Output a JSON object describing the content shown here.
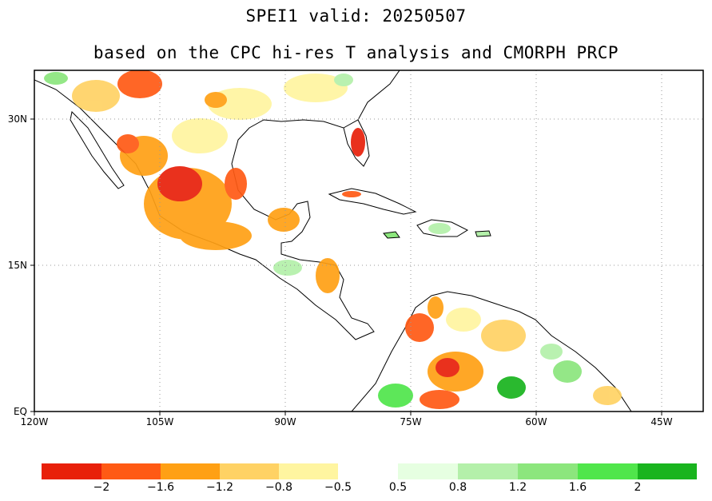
{
  "title": "SPEI1  valid: 20250507",
  "subtitle": "based on the CPC hi-res T analysis and CMORPH PRCP",
  "map": {
    "lon_range": [
      -120,
      -40
    ],
    "lat_range": [
      0,
      35
    ],
    "x_tick_labels": [
      "120W",
      "105W",
      "90W",
      "75W",
      "60W",
      "45W"
    ],
    "x_tick_values": [
      -120,
      -105,
      -90,
      -75,
      -60,
      -45
    ],
    "y_tick_labels": [
      "EQ",
      "15N",
      "30N"
    ],
    "y_tick_values": [
      0,
      15,
      30
    ],
    "grid": "dotted"
  },
  "legend": {
    "dry_colors": [
      "#e8200a",
      "#ff5a14",
      "#ffa014",
      "#ffd264",
      "#fff5a0"
    ],
    "wet_colors": [
      "#e6ffe1",
      "#b4f0aa",
      "#8ce67d",
      "#50e64b",
      "#19b41e"
    ],
    "labels": [
      "−2",
      "−1.6",
      "−1.2",
      "−0.8",
      "−0.5",
      "0.5",
      "0.8",
      "1.2",
      "1.6",
      "2"
    ]
  }
}
